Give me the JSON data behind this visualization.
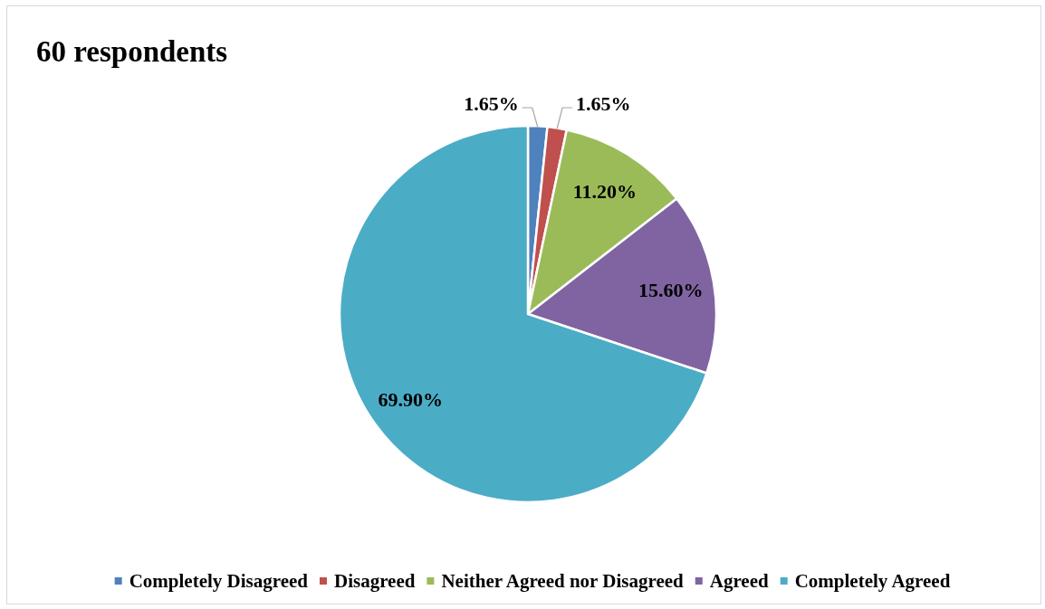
{
  "chart_data": {
    "type": "pie",
    "title": "60 respondents",
    "categories": [
      "Completely Disagreed",
      "Disagreed",
      "Neither Agreed nor Disagreed",
      "Agreed",
      "Completely Agreed"
    ],
    "values": [
      1.65,
      1.65,
      11.2,
      15.6,
      69.9
    ],
    "colors": [
      "#4f81bd",
      "#c0504d",
      "#9bbb59",
      "#8064a2",
      "#4bacc6"
    ],
    "value_labels": [
      "1.65%",
      "1.65%",
      "11.20%",
      "15.60%",
      "69.90%"
    ],
    "legend": "bottom"
  }
}
